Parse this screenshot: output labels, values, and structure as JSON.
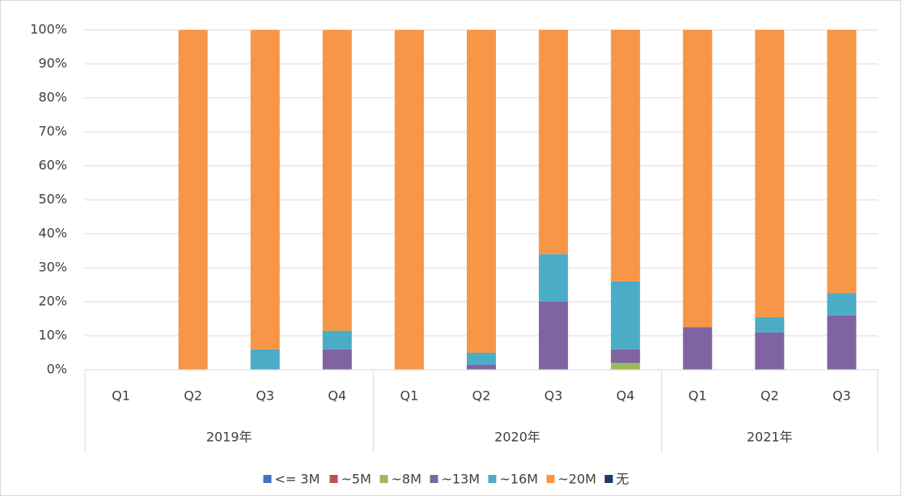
{
  "chart_data": {
    "type": "stacked_bar",
    "groups": [
      {
        "name": "2019年",
        "categories": [
          "Q1",
          "Q2",
          "Q3",
          "Q4"
        ]
      },
      {
        "name": "2020年",
        "categories": [
          "Q1",
          "Q2",
          "Q3",
          "Q4"
        ]
      },
      {
        "name": "2021年",
        "categories": [
          "Q1",
          "Q2",
          "Q3"
        ]
      }
    ],
    "series": [
      {
        "name": "<= 3M",
        "color": "#4472c4",
        "values": [
          0,
          0,
          0,
          0,
          0,
          0,
          0,
          0,
          0,
          0,
          0
        ]
      },
      {
        "name": "~5M",
        "color": "#c0504d",
        "values": [
          0,
          0,
          0,
          0,
          0,
          0,
          0,
          0,
          0,
          0,
          0
        ]
      },
      {
        "name": "~8M",
        "color": "#9bbb59",
        "values": [
          0,
          0,
          0,
          0,
          0,
          0,
          0,
          2,
          0,
          0,
          0
        ]
      },
      {
        "name": "~13M",
        "color": "#8064a2",
        "values": [
          0,
          0,
          0,
          6,
          0,
          1.5,
          20,
          4,
          12.5,
          11,
          16
        ]
      },
      {
        "name": "~16M",
        "color": "#4bacc6",
        "values": [
          0,
          0,
          6,
          5.5,
          0,
          3.5,
          14,
          20,
          0,
          4.5,
          6.5
        ]
      },
      {
        "name": "~20M",
        "color": "#f79646",
        "values": [
          0,
          100,
          94,
          88.5,
          100,
          95,
          66,
          74,
          87.5,
          84.5,
          77.5
        ]
      },
      {
        "name": "无",
        "color": "#1f3864",
        "values": [
          0,
          0,
          0,
          0,
          0,
          0,
          0,
          0,
          0,
          0,
          0
        ]
      }
    ],
    "ylim": [
      0,
      100
    ],
    "yticks": [
      {
        "value": 0,
        "label": "0%"
      },
      {
        "value": 10,
        "label": "10%"
      },
      {
        "value": 20,
        "label": "20%"
      },
      {
        "value": 30,
        "label": "30%"
      },
      {
        "value": 40,
        "label": "40%"
      },
      {
        "value": 50,
        "label": "50%"
      },
      {
        "value": 60,
        "label": "60%"
      },
      {
        "value": 70,
        "label": "70%"
      },
      {
        "value": 80,
        "label": "80%"
      },
      {
        "value": 90,
        "label": "90%"
      },
      {
        "value": 100,
        "label": "100%"
      }
    ],
    "grid": true,
    "legend": "bottom"
  }
}
